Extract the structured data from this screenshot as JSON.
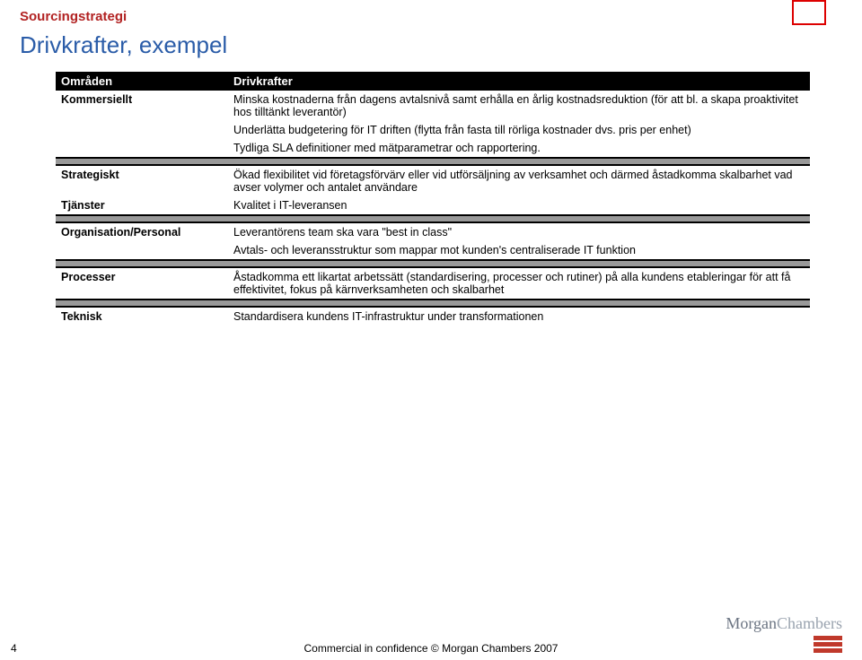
{
  "pretitle": "Sourcingstrategi",
  "title": "Drivkrafter, exempel",
  "header": {
    "col1": "Områden",
    "col2": "Drivkrafter"
  },
  "rows": {
    "r1": {
      "cat": "Kommersiellt",
      "txt": "Minska kostnaderna från dagens avtalsnivå samt erhålla en årlig kostnadsreduktion (för att bl. a skapa proaktivitet hos tilltänkt leverantör)"
    },
    "r2": {
      "cat": "",
      "txt": "Underlätta budgetering för IT driften (flytta från fasta till rörliga kostnader dvs. pris per enhet)"
    },
    "r3": {
      "cat": "",
      "txt": "Tydliga SLA definitioner med mätparametrar och rapportering."
    },
    "r4": {
      "cat": "Strategiskt",
      "txt": "Ökad flexibilitet vid företagsförvärv eller vid utförsäljning av verksamhet och därmed åstadkomma skalbarhet vad avser volymer och antalet användare"
    },
    "r5": {
      "cat": "Tjänster",
      "txt": "Kvalitet i IT-leveransen"
    },
    "r6": {
      "cat": "Organisation/Personal",
      "txt": "Leverantörens team ska vara \"best in class\""
    },
    "r7": {
      "cat": "",
      "txt": "Avtals- och leveransstruktur som mappar mot kunden's centraliserade IT funktion"
    },
    "r8": {
      "cat": "Processer",
      "txt": "Åstadkomma ett likartat arbetssätt (standardisering, processer och rutiner) på alla kundens etableringar för att få effektivitet, fokus på kärnverksamheten och skalbarhet"
    },
    "r9": {
      "cat": "Teknisk",
      "txt": "Standardisera kundens IT-infrastruktur under transformationen"
    }
  },
  "footer": {
    "page": "4",
    "text": "Commercial in confidence © Morgan Chambers 2007"
  },
  "logo": {
    "m": "Morgan",
    "c": "Chambers"
  }
}
